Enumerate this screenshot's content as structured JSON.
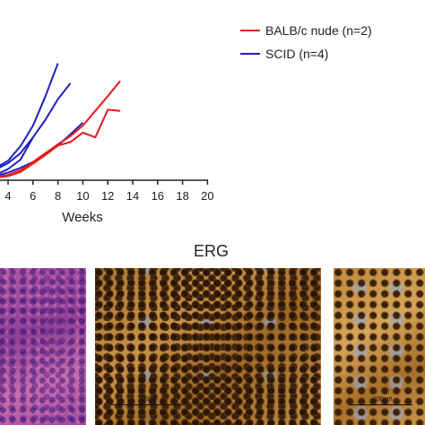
{
  "chart_data": {
    "type": "line",
    "xlabel": "Weeks",
    "xlim": [
      3,
      20
    ],
    "x_ticks": [
      4,
      6,
      8,
      10,
      12,
      14,
      16,
      18,
      20
    ],
    "ylim": [
      0,
      2100
    ],
    "grid": false,
    "legend_position": "top-right",
    "legend": [
      {
        "label": "BALB/c nude (n=2)",
        "color": "#e31a1c"
      },
      {
        "label": "SCID (n=4)",
        "color": "#1f1fbf"
      }
    ],
    "series": [
      {
        "group": "SCID",
        "color": "#1f1fbf",
        "x": [
          3,
          4,
          5,
          6,
          7,
          8
        ],
        "y": [
          180,
          300,
          550,
          900,
          1400,
          1960
        ]
      },
      {
        "group": "SCID",
        "color": "#1f1fbf",
        "x": [
          3,
          4,
          5,
          6,
          7,
          8,
          9
        ],
        "y": [
          150,
          260,
          430,
          700,
          1000,
          1350,
          1620
        ]
      },
      {
        "group": "SCID",
        "color": "#1f1fbf",
        "x": [
          3,
          4,
          5,
          6
        ],
        "y": [
          60,
          160,
          320,
          700
        ]
      },
      {
        "group": "SCID",
        "color": "#1f1fbf",
        "x": [
          3,
          4,
          5,
          6,
          7,
          8,
          9,
          10
        ],
        "y": [
          40,
          100,
          180,
          280,
          420,
          560,
          750,
          950
        ]
      },
      {
        "group": "BALB/c nude",
        "color": "#e31a1c",
        "x": [
          3,
          4,
          5,
          6,
          7,
          8,
          9,
          10,
          11,
          12,
          13
        ],
        "y": [
          20,
          60,
          140,
          280,
          430,
          580,
          720,
          900,
          1150,
          1400,
          1660
        ]
      },
      {
        "group": "BALB/c nude",
        "color": "#e31a1c",
        "x": [
          3,
          4,
          5,
          6,
          7,
          8,
          9,
          10,
          11,
          12,
          13
        ],
        "y": [
          10,
          40,
          110,
          250,
          400,
          560,
          620,
          780,
          700,
          1170,
          1150
        ]
      }
    ]
  },
  "panel": {
    "title": "ERG",
    "scale_label": "100µm"
  }
}
